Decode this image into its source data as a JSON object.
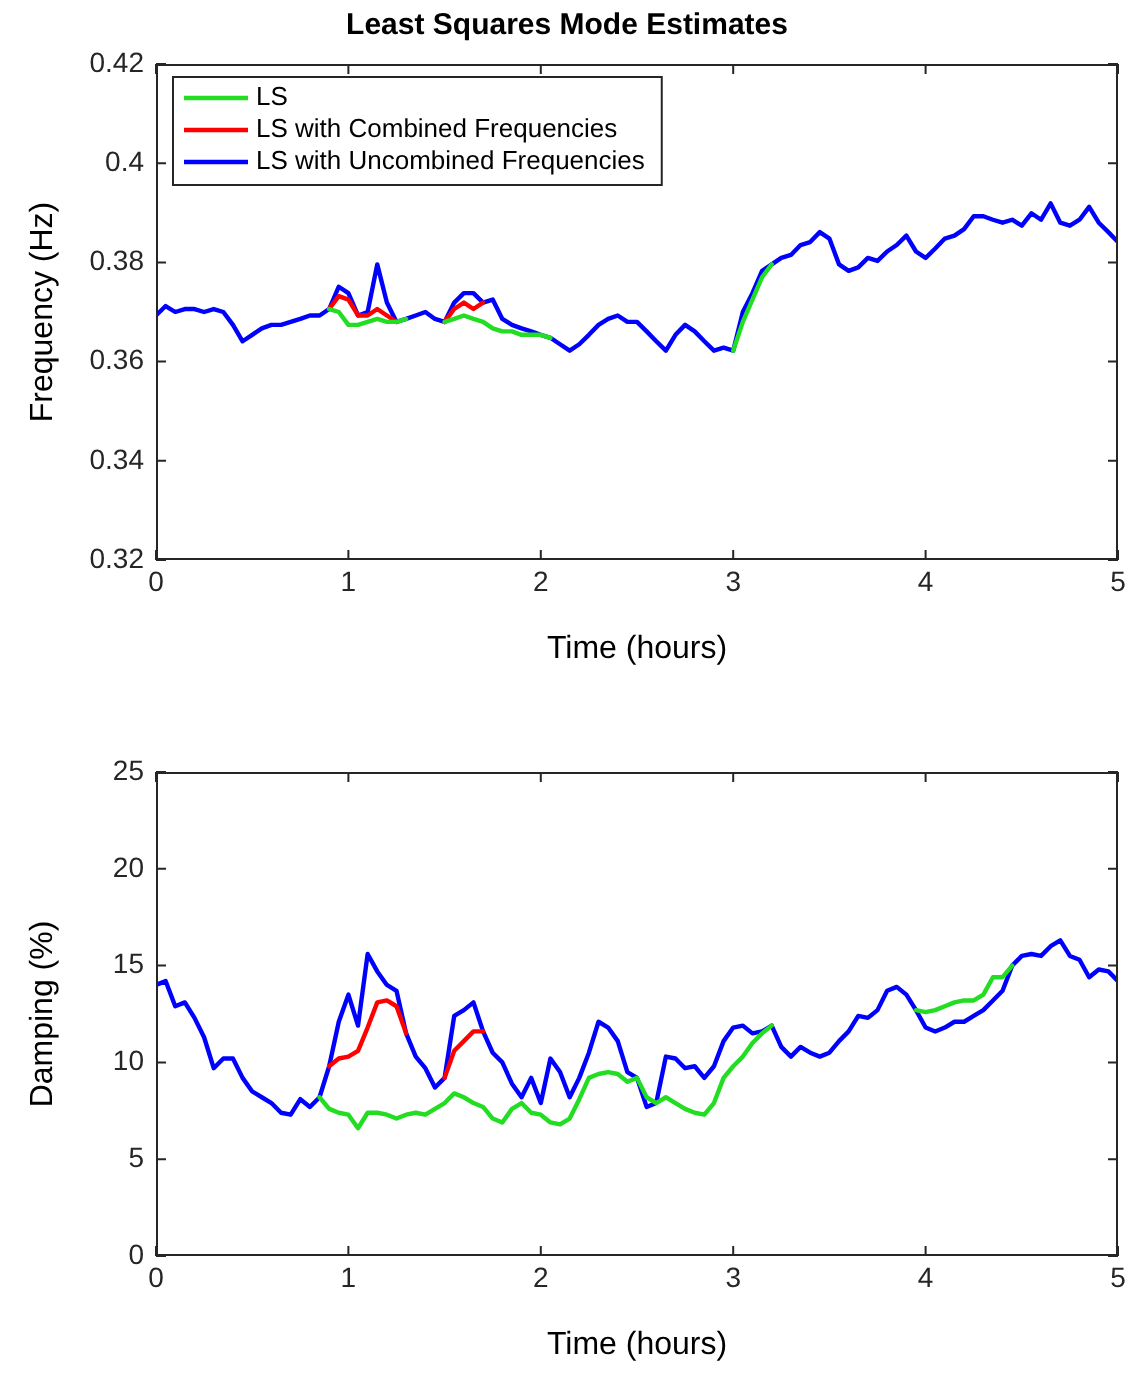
{
  "chart_data": [
    {
      "type": "line",
      "title": "Least Squares Mode Estimates",
      "xlabel": "Time (hours)",
      "ylabel": "Frequency (Hz)",
      "legend": "top left",
      "marker": "none",
      "line_style": "solid",
      "xlim": [
        0,
        5
      ],
      "xticks": [
        0,
        1,
        2,
        3,
        4,
        5
      ],
      "ylim": [
        0.32,
        0.42
      ],
      "yticks": [
        0.32,
        0.34,
        0.36,
        0.38,
        0.4,
        0.42
      ],
      "x": [
        0,
        0.05,
        0.1,
        0.15,
        0.2,
        0.25,
        0.3,
        0.35,
        0.4,
        0.45,
        0.5,
        0.55,
        0.6,
        0.65,
        0.7,
        0.75,
        0.8,
        0.85,
        0.9,
        0.95,
        1,
        1.05,
        1.1,
        1.15,
        1.2,
        1.25,
        1.3,
        1.35,
        1.4,
        1.45,
        1.5,
        1.55,
        1.6,
        1.65,
        1.7,
        1.75,
        1.8,
        1.85,
        1.9,
        1.95,
        2,
        2.05,
        2.1,
        2.15,
        2.2,
        2.25,
        2.3,
        2.35,
        2.4,
        2.45,
        2.5,
        2.55,
        2.6,
        2.65,
        2.7,
        2.75,
        2.8,
        2.85,
        2.9,
        2.95,
        3,
        3.05,
        3.1,
        3.15,
        3.2,
        3.25,
        3.3,
        3.35,
        3.4,
        3.45,
        3.5,
        3.55,
        3.6,
        3.65,
        3.7,
        3.75,
        3.8,
        3.85,
        3.9,
        3.95,
        4,
        4.05,
        4.1,
        4.15,
        4.2,
        4.25,
        4.3,
        4.35,
        4.4,
        4.45,
        4.5,
        4.55,
        4.6,
        4.65,
        4.7,
        4.75,
        4.8,
        4.85,
        4.9,
        4.95,
        5
      ],
      "series": [
        {
          "name": "LS",
          "color": "#22dd22",
          "values": [
            null,
            null,
            null,
            null,
            null,
            null,
            null,
            null,
            null,
            null,
            null,
            null,
            null,
            null,
            null,
            null,
            null,
            null,
            0.3706,
            0.37,
            0.3674,
            0.3674,
            0.368,
            0.3686,
            0.368,
            0.368,
            0.3686,
            null,
            null,
            null,
            0.368,
            0.3686,
            0.3693,
            0.3686,
            0.368,
            0.3667,
            0.3661,
            0.3661,
            0.3654,
            0.3654,
            0.3654,
            0.3648,
            null,
            null,
            null,
            null,
            null,
            null,
            null,
            null,
            null,
            null,
            null,
            null,
            null,
            null,
            null,
            null,
            null,
            null,
            0.3622,
            0.368,
            0.3725,
            0.377,
            0.3796,
            null,
            null,
            null,
            null,
            null,
            null,
            null,
            null,
            null,
            null,
            null,
            null,
            null,
            null,
            null,
            null,
            null,
            null,
            null,
            null,
            null,
            null,
            null,
            null,
            null,
            null,
            null,
            null,
            null,
            null,
            null,
            null,
            null,
            null,
            null,
            null
          ]
        },
        {
          "name": "LS with Combined Frequencies",
          "color": "#ff0000",
          "values": [
            null,
            null,
            null,
            null,
            null,
            null,
            null,
            null,
            null,
            null,
            null,
            null,
            null,
            null,
            null,
            null,
            null,
            null,
            0.3706,
            0.3732,
            0.3725,
            0.3693,
            0.3693,
            0.3706,
            0.3693,
            0.368,
            null,
            null,
            null,
            null,
            0.368,
            0.3706,
            0.3719,
            0.3706,
            0.3719,
            null,
            null,
            null,
            null,
            null,
            null,
            null,
            null,
            null,
            null,
            null,
            null,
            null,
            null,
            null,
            null,
            null,
            null,
            null,
            null,
            null,
            null,
            null,
            null,
            null,
            null,
            null,
            null,
            null,
            null,
            null,
            null,
            null,
            null,
            null,
            null,
            null,
            null,
            null,
            null,
            null,
            null,
            null,
            null,
            null,
            null,
            null,
            null,
            null,
            null,
            null,
            null,
            null,
            null,
            null,
            null,
            null,
            null,
            null,
            null,
            null,
            null,
            null,
            null,
            null,
            null
          ]
        },
        {
          "name": "LS with Uncombined Frequencies",
          "color": "#0000ff",
          "values": [
            0.3693,
            0.3712,
            0.37,
            0.3706,
            0.3706,
            0.37,
            0.3706,
            0.37,
            0.3674,
            0.3641,
            0.3654,
            0.3667,
            0.3674,
            0.3674,
            0.368,
            0.3686,
            0.3693,
            0.3693,
            0.3706,
            0.3751,
            0.3738,
            0.3693,
            0.37,
            0.3796,
            0.3719,
            0.368,
            0.3686,
            0.3693,
            0.37,
            0.3686,
            0.368,
            0.3719,
            0.3738,
            0.3738,
            0.3719,
            0.3725,
            0.3686,
            0.3674,
            0.3667,
            0.3661,
            0.3654,
            0.3648,
            0.3635,
            0.3622,
            0.3635,
            0.3654,
            0.3674,
            0.3686,
            0.3693,
            0.368,
            0.368,
            0.3661,
            0.3641,
            0.3622,
            0.3654,
            0.3674,
            0.3661,
            0.3641,
            0.3622,
            0.3628,
            0.3622,
            0.37,
            0.3738,
            0.3783,
            0.3796,
            0.3809,
            0.3815,
            0.3835,
            0.3841,
            0.3861,
            0.3848,
            0.3796,
            0.3783,
            0.379,
            0.3809,
            0.3803,
            0.3822,
            0.3835,
            0.3854,
            0.3822,
            0.3809,
            0.3828,
            0.3848,
            0.3854,
            0.3867,
            0.3893,
            0.3893,
            0.3886,
            0.388,
            0.3886,
            0.3874,
            0.3899,
            0.3886,
            0.3919,
            0.388,
            0.3874,
            0.3886,
            0.3912,
            0.388,
            0.3861,
            0.3841
          ]
        }
      ]
    },
    {
      "type": "line",
      "xlabel": "Time (hours)",
      "ylabel": "Damping (%)",
      "marker": "none",
      "line_style": "solid",
      "xlim": [
        0,
        5
      ],
      "xticks": [
        0,
        1,
        2,
        3,
        4,
        5
      ],
      "ylim": [
        0,
        25
      ],
      "yticks": [
        0,
        5,
        10,
        15,
        20,
        25
      ],
      "x": [
        0,
        0.05,
        0.1,
        0.15,
        0.2,
        0.25,
        0.3,
        0.35,
        0.4,
        0.45,
        0.5,
        0.55,
        0.6,
        0.65,
        0.7,
        0.75,
        0.8,
        0.85,
        0.9,
        0.95,
        1,
        1.05,
        1.1,
        1.15,
        1.2,
        1.25,
        1.3,
        1.35,
        1.4,
        1.45,
        1.5,
        1.55,
        1.6,
        1.65,
        1.7,
        1.75,
        1.8,
        1.85,
        1.9,
        1.95,
        2,
        2.05,
        2.1,
        2.15,
        2.2,
        2.25,
        2.3,
        2.35,
        2.4,
        2.45,
        2.5,
        2.55,
        2.6,
        2.65,
        2.7,
        2.75,
        2.8,
        2.85,
        2.9,
        2.95,
        3,
        3.05,
        3.1,
        3.15,
        3.2,
        3.25,
        3.3,
        3.35,
        3.4,
        3.45,
        3.5,
        3.55,
        3.6,
        3.65,
        3.7,
        3.75,
        3.8,
        3.85,
        3.9,
        3.95,
        4,
        4.05,
        4.1,
        4.15,
        4.2,
        4.25,
        4.3,
        4.35,
        4.4,
        4.45,
        4.5,
        4.55,
        4.6,
        4.65,
        4.7,
        4.75,
        4.8,
        4.85,
        4.9,
        4.95,
        5
      ],
      "series": [
        {
          "color": "#22dd22",
          "values": [
            null,
            null,
            null,
            null,
            null,
            null,
            null,
            null,
            null,
            null,
            null,
            null,
            null,
            null,
            null,
            null,
            null,
            8.2,
            7.6,
            7.4,
            7.3,
            6.6,
            7.4,
            7.4,
            7.3,
            7.1,
            7.3,
            7.4,
            7.3,
            7.6,
            7.9,
            8.4,
            8.2,
            7.9,
            7.7,
            7.1,
            6.9,
            7.6,
            7.9,
            7.4,
            7.3,
            6.9,
            6.8,
            7.1,
            8.1,
            9.2,
            9.4,
            9.5,
            9.4,
            9.0,
            9.2,
            8.2,
            7.9,
            8.2,
            7.9,
            7.6,
            7.4,
            7.3,
            7.9,
            9.2,
            9.8,
            10.3,
            11.0,
            11.5,
            11.9,
            null,
            null,
            null,
            null,
            null,
            null,
            null,
            null,
            null,
            null,
            null,
            null,
            null,
            null,
            12.7,
            12.6,
            12.7,
            12.9,
            13.1,
            13.2,
            13.2,
            13.5,
            14.4,
            14.4,
            15.0,
            null,
            null,
            null,
            null,
            null,
            null,
            null,
            null,
            null,
            null,
            null
          ]
        },
        {
          "color": "#ff0000",
          "values": [
            null,
            null,
            null,
            null,
            null,
            null,
            null,
            null,
            null,
            null,
            null,
            null,
            null,
            null,
            null,
            null,
            null,
            null,
            9.8,
            10.2,
            10.3,
            10.6,
            11.8,
            13.1,
            13.2,
            12.9,
            11.5,
            null,
            null,
            null,
            9.2,
            10.6,
            11.1,
            11.6,
            11.6,
            null,
            null,
            null,
            null,
            null,
            null,
            null,
            null,
            null,
            null,
            null,
            null,
            null,
            null,
            null,
            null,
            null,
            null,
            null,
            null,
            null,
            null,
            null,
            null,
            null,
            null,
            null,
            null,
            null,
            null,
            null,
            null,
            null,
            null,
            null,
            null,
            null,
            null,
            null,
            null,
            null,
            null,
            null,
            null,
            null,
            null,
            null,
            null,
            null,
            null,
            null,
            null,
            null,
            null,
            null,
            null,
            null,
            null,
            null,
            null,
            null,
            null,
            null,
            null,
            null,
            null
          ]
        },
        {
          "color": "#0000ff",
          "values": [
            14,
            14.2,
            12.9,
            13.1,
            12.3,
            11.3,
            9.7,
            10.2,
            10.2,
            9.2,
            8.5,
            8.2,
            7.9,
            7.4,
            7.3,
            8.1,
            7.7,
            8.2,
            9.8,
            12.1,
            13.5,
            11.9,
            15.6,
            14.7,
            14.0,
            13.7,
            11.5,
            10.3,
            9.7,
            8.7,
            9.2,
            12.4,
            12.7,
            13.1,
            11.6,
            10.5,
            10.0,
            8.9,
            8.2,
            9.2,
            7.9,
            10.2,
            9.5,
            8.2,
            9.2,
            10.5,
            12.1,
            11.8,
            11.1,
            9.5,
            9.2,
            7.7,
            7.9,
            10.3,
            10.2,
            9.7,
            9.8,
            9.2,
            9.8,
            11.1,
            11.8,
            11.9,
            11.5,
            11.6,
            11.9,
            10.8,
            10.3,
            10.8,
            10.5,
            10.3,
            10.5,
            11.1,
            11.6,
            12.4,
            12.3,
            12.7,
            13.7,
            13.9,
            13.5,
            12.7,
            11.8,
            11.6,
            11.8,
            12.1,
            12.1,
            12.4,
            12.7,
            13.2,
            13.7,
            15.0,
            15.5,
            15.6,
            15.5,
            16.0,
            16.3,
            15.5,
            15.3,
            14.4,
            14.8,
            14.7,
            14.2
          ]
        }
      ]
    }
  ]
}
